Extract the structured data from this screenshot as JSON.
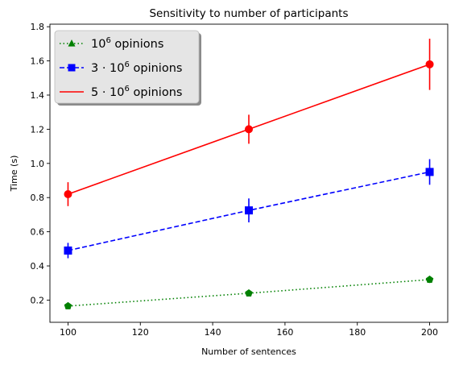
{
  "chart_data": {
    "type": "line",
    "title": "Sensitivity to number of participants",
    "xlabel": "Number of sentences",
    "ylabel": "Time (s)",
    "xlim": [
      95,
      205
    ],
    "ylim": [
      0.07,
      1.815
    ],
    "xticks": [
      100,
      120,
      140,
      160,
      180,
      200
    ],
    "yticks": [
      0.2,
      0.4,
      0.6,
      0.8,
      1.0,
      1.2,
      1.4,
      1.6,
      1.8
    ],
    "grid": false,
    "legend_position": "top-left",
    "x": [
      100,
      150,
      200
    ],
    "series": [
      {
        "name": "10^6 opinions",
        "legend_prefix": "",
        "legend_exp": "6",
        "legend_suffix": " opinions",
        "values": [
          0.165,
          0.24,
          0.32
        ],
        "errors": [
          0.015,
          0.015,
          0.02
        ],
        "color": "#008000",
        "linestyle": "dotted",
        "marker": "triangle",
        "data_marker": "pentagon"
      },
      {
        "name": "3·10^6 opinions",
        "legend_prefix": "3 · ",
        "legend_exp": "6",
        "legend_suffix": " opinions",
        "values": [
          0.49,
          0.725,
          0.95
        ],
        "errors": [
          0.045,
          0.07,
          0.075
        ],
        "color": "#0000ff",
        "linestyle": "dashed",
        "marker": "square",
        "data_marker": "square"
      },
      {
        "name": "5·10^6 opinions",
        "legend_prefix": "5 · ",
        "legend_exp": "6",
        "legend_suffix": " opinions",
        "values": [
          0.82,
          1.2,
          1.58
        ],
        "errors": [
          0.07,
          0.085,
          0.15
        ],
        "color": "#ff0000",
        "linestyle": "solid",
        "marker": "none",
        "data_marker": "circle"
      }
    ]
  }
}
